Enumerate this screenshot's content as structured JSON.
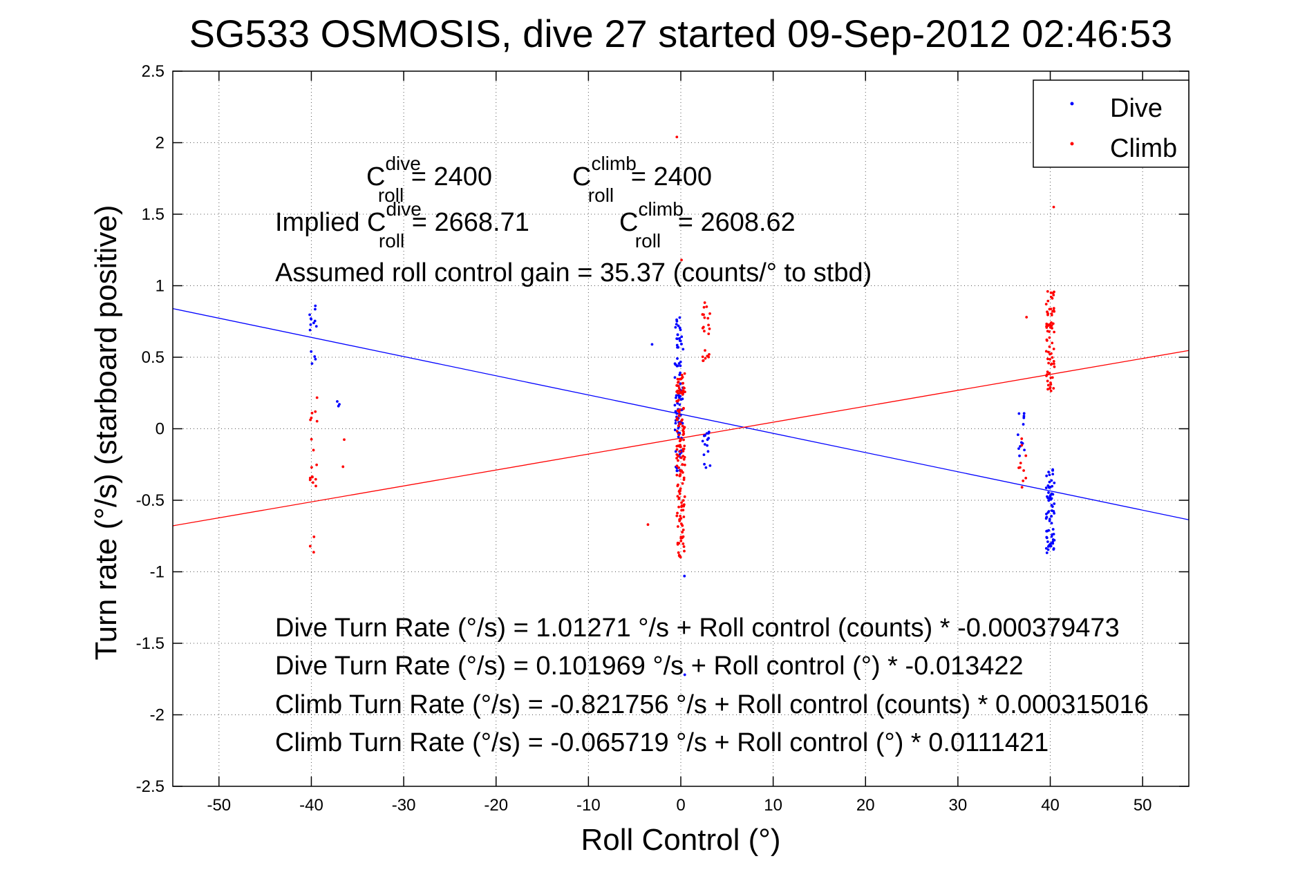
{
  "chart_data": {
    "type": "scatter",
    "title": "SG533 OSMOSIS, dive 27 started 09-Sep-2012 02:46:53",
    "xlabel": "Roll Control (°)",
    "ylabel": "Turn rate (°/s)  (starboard positive)",
    "xlim": [
      -55,
      55
    ],
    "ylim": [
      -2.5,
      2.5
    ],
    "xticks": [
      -50,
      -40,
      -30,
      -20,
      -10,
      0,
      10,
      20,
      30,
      40,
      50
    ],
    "yticks": [
      -2.5,
      -2,
      -1.5,
      -1,
      -0.5,
      0,
      0.5,
      1,
      1.5,
      2,
      2.5
    ],
    "grid": true,
    "legend": {
      "position": "top-right",
      "entries": [
        {
          "name": "Dive",
          "color": "#0000ff"
        },
        {
          "name": "Climb",
          "color": "#ff0000"
        }
      ]
    },
    "annotations": {
      "c_dive_prefix": "C",
      "c_dive_sup": "dive",
      "c_dive_sub": "roll",
      "c_dive_value": " = 2400",
      "c_climb_prefix": "C",
      "c_climb_sup": "climb",
      "c_climb_sub": "roll",
      "c_climb_value": " = 2400",
      "implied_label": "Implied C",
      "implied_dive_sup": "dive",
      "implied_dive_sub": "roll",
      "implied_dive_value": " = 2668.71",
      "implied_climb_prefix": "C",
      "implied_climb_sup": "climb",
      "implied_climb_sub": "roll",
      "implied_climb_value": " = 2608.62",
      "gain": "Assumed roll control gain = 35.37 (counts/° to stbd)",
      "eq1": "Dive Turn Rate (°/s) = 1.01271 °/s + Roll control (counts) * -0.000379473",
      "eq2": "Dive Turn Rate (°/s) = 0.101969 °/s + Roll control (°) * -0.013422",
      "eq3": "Climb Turn Rate (°/s) = -0.821756 °/s + Roll control (counts) * 0.000315016",
      "eq4": "Climb Turn Rate (°/s) = -0.065719 °/s + Roll control (°) * 0.0111421"
    },
    "fit_lines": [
      {
        "name": "Dive",
        "color": "#0000ff",
        "intercept": 0.101969,
        "slope": -0.013422
      },
      {
        "name": "Climb",
        "color": "#ff0000",
        "intercept": -0.065719,
        "slope": 0.0111421
      }
    ],
    "series": [
      {
        "name": "Dive",
        "color": "#0000ff",
        "clusters": [
          {
            "x": -39.9,
            "y_min": 0.4,
            "y_max": 0.9,
            "count": 14
          },
          {
            "x": -36.9,
            "y_min": 0.15,
            "y_max": 0.2,
            "count": 3
          },
          {
            "x": -3.0,
            "y_min": 0.59,
            "y_max": 0.59,
            "count": 1
          },
          {
            "x": -0.2,
            "y_min": -0.3,
            "y_max": 0.78,
            "count": 90
          },
          {
            "x": 0.0,
            "y_min": -1.03,
            "y_max": -1.03,
            "count": 1
          },
          {
            "x": 0.0,
            "y_min": -1.72,
            "y_max": -1.72,
            "count": 1
          },
          {
            "x": 2.8,
            "y_min": -0.28,
            "y_max": -0.02,
            "count": 16
          },
          {
            "x": 36.9,
            "y_min": -0.22,
            "y_max": 0.14,
            "count": 12
          },
          {
            "x": 40.0,
            "y_min": -0.87,
            "y_max": -0.28,
            "count": 70
          }
        ]
      },
      {
        "name": "Climb",
        "color": "#ff0000",
        "clusters": [
          {
            "x": -39.8,
            "y_min": -0.9,
            "y_max": 0.26,
            "count": 20
          },
          {
            "x": -36.8,
            "y_min": -0.27,
            "y_max": 0.38,
            "count": 2
          },
          {
            "x": -3.3,
            "y_min": -0.67,
            "y_max": -0.67,
            "count": 1
          },
          {
            "x": 0.0,
            "y_min": -0.9,
            "y_max": 0.4,
            "count": 150
          },
          {
            "x": 0.0,
            "y_min": 2.04,
            "y_max": 2.04,
            "count": 1
          },
          {
            "x": 0.0,
            "y_min": 1.18,
            "y_max": 1.18,
            "count": 1
          },
          {
            "x": 2.8,
            "y_min": 0.47,
            "y_max": 0.92,
            "count": 22
          },
          {
            "x": 37.0,
            "y_min": -0.47,
            "y_max": -0.05,
            "count": 10
          },
          {
            "x": 37.0,
            "y_min": 0.78,
            "y_max": 0.78,
            "count": 1
          },
          {
            "x": 40.0,
            "y_min": 0.25,
            "y_max": 0.98,
            "count": 70
          },
          {
            "x": 40.0,
            "y_min": 1.55,
            "y_max": 1.55,
            "count": 1
          }
        ]
      }
    ]
  }
}
